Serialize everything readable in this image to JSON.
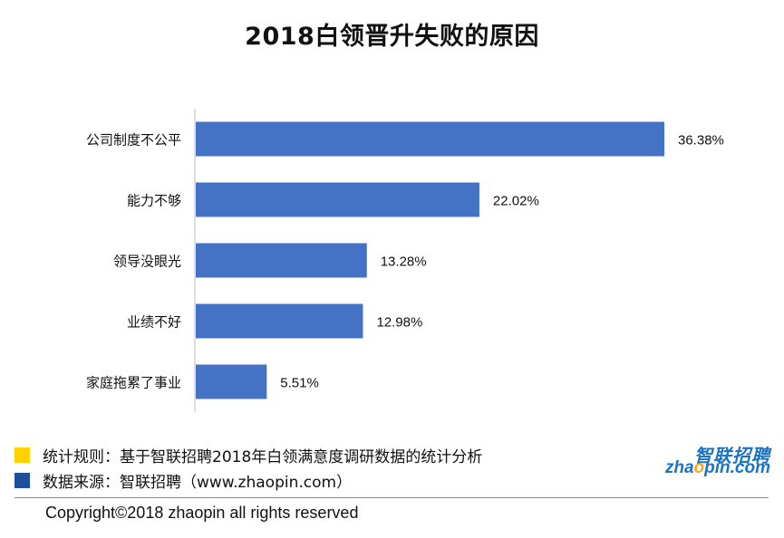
{
  "chart_data": {
    "type": "bar",
    "orientation": "horizontal",
    "title": "2018白领晋升失败的原因",
    "categories": [
      "公司制度不公平",
      "能力不够",
      "领导没眼光",
      "业绩不好",
      "家庭拖累了事业"
    ],
    "values": [
      36.38,
      22.02,
      13.28,
      12.98,
      5.51
    ],
    "value_labels": [
      "36.38%",
      "22.02%",
      "13.28%",
      "12.98%",
      "5.51%"
    ],
    "xlim": [
      0,
      36.38
    ],
    "grid": false,
    "legend": "none",
    "bar_color": "#4472C4"
  },
  "notes": {
    "rule": "统计规则：基于智联招聘2018年白领满意度调研数据的统计分析",
    "rule_color": "#FFD200",
    "source": "数据来源：智联招聘（www.zhaopin.com）",
    "source_color": "#1F4E9C"
  },
  "logo": {
    "cn": "智联招聘",
    "en_before": "zha",
    "en_o": "o",
    "en_after": "pin.com"
  },
  "footer": {
    "copyright": "Copyright©2018 zhaopin all rights reserved"
  }
}
